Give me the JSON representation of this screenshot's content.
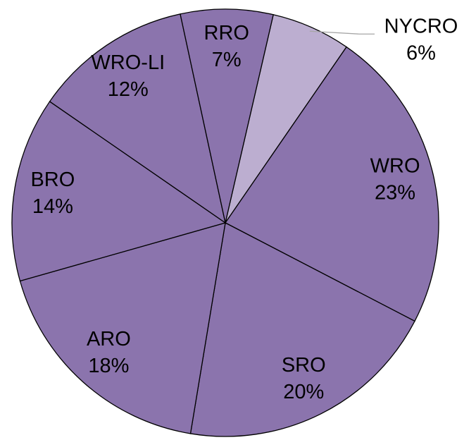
{
  "chart_data": {
    "type": "pie",
    "categories": [
      "NYCRO",
      "WRO",
      "SRO",
      "ARO",
      "BRO",
      "WRO-LI",
      "RRO"
    ],
    "values": [
      6,
      23,
      20,
      18,
      14,
      12,
      7
    ],
    "value_labels": [
      "6%",
      "23%",
      "20%",
      "18%",
      "14%",
      "12%",
      "7%"
    ],
    "colors": [
      "#bcaed0",
      "#8b74ad",
      "#8b74ad",
      "#8b74ad",
      "#8b74ad",
      "#8b74ad",
      "#8b74ad"
    ]
  }
}
